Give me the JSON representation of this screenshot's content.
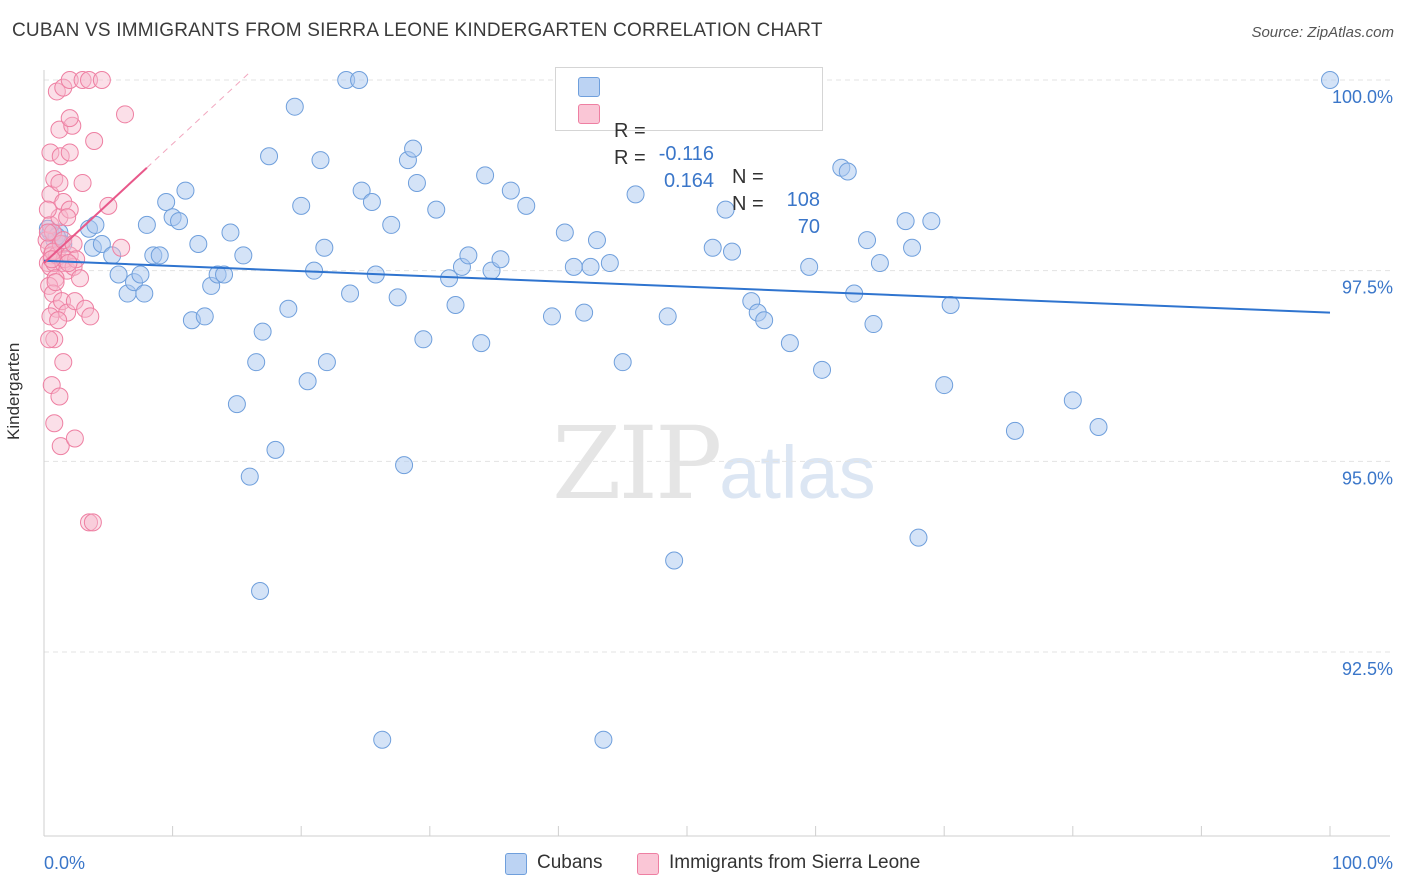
{
  "title": "CUBAN VS IMMIGRANTS FROM SIERRA LEONE KINDERGARTEN CORRELATION CHART",
  "source": "Source: ZipAtlas.com",
  "watermark": {
    "zip": "ZIP",
    "atlas": "atlas"
  },
  "colors": {
    "cubans": "#a9c7ef",
    "cubans_stroke": "#6f9fdc",
    "cubans_line": "#2f74cf",
    "sierra": "#f7b8cb",
    "sierra_stroke": "#ee7fa2",
    "sierra_line": "#e8588a",
    "value_blue": "#3a76c9"
  },
  "legend": {
    "rows": [
      {
        "r_label": "R =",
        "r_value": "-0.116",
        "n_label": "N =",
        "n_value": "108"
      },
      {
        "r_label": "R =",
        "r_value": "0.164",
        "n_label": "N =",
        "n_value": " 70"
      }
    ]
  },
  "bottom_legend": {
    "cubans": "Cubans",
    "sierra": "Immigrants from Sierra Leone"
  },
  "chart_data": {
    "type": "scatter",
    "title": "CUBAN VS IMMIGRANTS FROM SIERRA LEONE KINDERGARTEN CORRELATION CHART",
    "xlabel": "",
    "ylabel": "Kindergarten",
    "xlim": [
      0,
      100
    ],
    "ylim": [
      90.5,
      100.3
    ],
    "x_tick_labels": [
      "0.0%",
      "100.0%"
    ],
    "y_ticks": [
      92.5,
      95.0,
      97.5,
      100.0
    ],
    "y_tick_labels": [
      "92.5%",
      "95.0%",
      "97.5%",
      "100.0%"
    ],
    "grid": true,
    "legend_position": "top-center",
    "series": [
      {
        "name": "Cubans",
        "trend": {
          "x": [
            0,
            100
          ],
          "y": [
            97.63,
            96.95
          ]
        },
        "points": [
          [
            0.5,
            98.0
          ],
          [
            0.8,
            97.9
          ],
          [
            1.2,
            98.0
          ],
          [
            1.5,
            97.85
          ],
          [
            3.5,
            98.05
          ],
          [
            4.0,
            98.1
          ],
          [
            3.8,
            97.8
          ],
          [
            4.5,
            97.85
          ],
          [
            5.3,
            97.7
          ],
          [
            5.8,
            97.45
          ],
          [
            6.5,
            97.2
          ],
          [
            7.0,
            97.35
          ],
          [
            7.5,
            97.45
          ],
          [
            8.0,
            98.1
          ],
          [
            8.5,
            97.7
          ],
          [
            9.0,
            97.7
          ],
          [
            9.5,
            98.4
          ],
          [
            10.0,
            98.2
          ],
          [
            10.5,
            98.15
          ],
          [
            11.0,
            98.55
          ],
          [
            11.5,
            96.85
          ],
          [
            12.0,
            97.85
          ],
          [
            12.5,
            96.9
          ],
          [
            13.0,
            97.3
          ],
          [
            13.5,
            97.45
          ],
          [
            14.0,
            97.45
          ],
          [
            14.5,
            98.0
          ],
          [
            15.0,
            95.75
          ],
          [
            15.5,
            97.7
          ],
          [
            16.0,
            94.8
          ],
          [
            16.5,
            96.3
          ],
          [
            16.8,
            93.3
          ],
          [
            17.0,
            96.7
          ],
          [
            17.5,
            99.0
          ],
          [
            18.0,
            95.15
          ],
          [
            19.0,
            97.0
          ],
          [
            19.5,
            99.65
          ],
          [
            20.0,
            98.35
          ],
          [
            20.5,
            96.05
          ],
          [
            21.0,
            97.5
          ],
          [
            21.5,
            98.95
          ],
          [
            21.8,
            97.8
          ],
          [
            22.0,
            96.3
          ],
          [
            23.5,
            100.0
          ],
          [
            23.8,
            97.2
          ],
          [
            24.5,
            100.0
          ],
          [
            24.7,
            98.55
          ],
          [
            25.5,
            98.4
          ],
          [
            25.8,
            97.45
          ],
          [
            26.3,
            91.35
          ],
          [
            27.0,
            98.1
          ],
          [
            27.5,
            97.15
          ],
          [
            28.0,
            94.95
          ],
          [
            28.3,
            98.95
          ],
          [
            28.7,
            99.1
          ],
          [
            29.0,
            98.65
          ],
          [
            29.5,
            96.6
          ],
          [
            30.5,
            98.3
          ],
          [
            31.5,
            97.4
          ],
          [
            32.0,
            97.05
          ],
          [
            32.5,
            97.55
          ],
          [
            33.0,
            97.7
          ],
          [
            34.0,
            96.55
          ],
          [
            34.3,
            98.75
          ],
          [
            34.8,
            97.5
          ],
          [
            35.5,
            97.65
          ],
          [
            36.3,
            98.55
          ],
          [
            37.5,
            98.35
          ],
          [
            39.5,
            96.9
          ],
          [
            40.5,
            98.0
          ],
          [
            41.2,
            97.55
          ],
          [
            42.0,
            96.95
          ],
          [
            42.5,
            97.55
          ],
          [
            43.0,
            97.9
          ],
          [
            43.5,
            91.35
          ],
          [
            44.0,
            97.6
          ],
          [
            45.0,
            96.3
          ],
          [
            46.0,
            98.5
          ],
          [
            48.5,
            96.9
          ],
          [
            49.0,
            93.7
          ],
          [
            52.0,
            97.8
          ],
          [
            53.0,
            98.3
          ],
          [
            53.5,
            97.75
          ],
          [
            55.0,
            97.1
          ],
          [
            55.5,
            96.95
          ],
          [
            56.0,
            96.85
          ],
          [
            58.0,
            96.55
          ],
          [
            59.5,
            97.55
          ],
          [
            60.5,
            96.2
          ],
          [
            62.0,
            98.85
          ],
          [
            62.5,
            98.8
          ],
          [
            63.0,
            97.2
          ],
          [
            64.0,
            97.9
          ],
          [
            64.5,
            96.8
          ],
          [
            65.0,
            97.6
          ],
          [
            67.0,
            98.15
          ],
          [
            67.5,
            97.8
          ],
          [
            68.0,
            94.0
          ],
          [
            69.0,
            98.15
          ],
          [
            70.0,
            96.0
          ],
          [
            70.5,
            97.05
          ],
          [
            75.5,
            95.4
          ],
          [
            80.0,
            95.8
          ],
          [
            82.0,
            95.45
          ],
          [
            100.0,
            100.0
          ],
          [
            0.3,
            98.05
          ],
          [
            1.0,
            97.95
          ],
          [
            7.8,
            97.2
          ]
        ]
      },
      {
        "name": "Immigrants from Sierra Leone",
        "trend": {
          "x": [
            0,
            8
          ],
          "y": [
            97.6,
            98.85
          ]
        },
        "trend_dashed": {
          "x": [
            8,
            16
          ],
          "y": [
            98.85,
            100.1
          ]
        },
        "points": [
          [
            0.2,
            97.9
          ],
          [
            0.3,
            97.6
          ],
          [
            0.4,
            97.8
          ],
          [
            0.5,
            98.1
          ],
          [
            0.6,
            97.7
          ],
          [
            0.7,
            98.0
          ],
          [
            0.5,
            97.55
          ],
          [
            0.8,
            97.6
          ],
          [
            1.0,
            97.7
          ],
          [
            1.2,
            98.2
          ],
          [
            1.5,
            97.6
          ],
          [
            1.8,
            97.5
          ],
          [
            0.9,
            97.4
          ],
          [
            1.3,
            97.85
          ],
          [
            1.6,
            97.65
          ],
          [
            2.0,
            97.7
          ],
          [
            2.3,
            97.55
          ],
          [
            0.4,
            97.3
          ],
          [
            0.7,
            97.2
          ],
          [
            1.0,
            97.0
          ],
          [
            1.4,
            97.1
          ],
          [
            1.8,
            96.95
          ],
          [
            2.4,
            97.1
          ],
          [
            0.5,
            96.9
          ],
          [
            0.8,
            96.6
          ],
          [
            1.1,
            96.85
          ],
          [
            1.5,
            96.3
          ],
          [
            0.4,
            96.6
          ],
          [
            0.6,
            96.0
          ],
          [
            1.2,
            95.85
          ],
          [
            0.8,
            95.5
          ],
          [
            1.3,
            95.2
          ],
          [
            2.4,
            95.3
          ],
          [
            3.5,
            94.2
          ],
          [
            3.8,
            94.2
          ],
          [
            0.5,
            98.5
          ],
          [
            0.8,
            98.7
          ],
          [
            1.2,
            98.65
          ],
          [
            1.5,
            98.4
          ],
          [
            2.0,
            98.3
          ],
          [
            3.0,
            98.65
          ],
          [
            0.5,
            99.05
          ],
          [
            1.3,
            99.0
          ],
          [
            2.0,
            99.05
          ],
          [
            1.2,
            99.35
          ],
          [
            2.2,
            99.4
          ],
          [
            2.0,
            99.5
          ],
          [
            3.9,
            99.2
          ],
          [
            1.0,
            99.85
          ],
          [
            1.5,
            99.9
          ],
          [
            2.0,
            100.0
          ],
          [
            3.0,
            100.0
          ],
          [
            3.5,
            100.0
          ],
          [
            4.5,
            100.0
          ],
          [
            6.3,
            99.55
          ],
          [
            5.0,
            98.35
          ],
          [
            1.8,
            98.2
          ],
          [
            0.3,
            98.3
          ],
          [
            0.3,
            98.0
          ],
          [
            0.7,
            97.75
          ],
          [
            1.5,
            97.9
          ],
          [
            2.3,
            97.85
          ],
          [
            2.5,
            97.65
          ],
          [
            0.6,
            97.65
          ],
          [
            1.9,
            97.6
          ],
          [
            6.0,
            97.8
          ],
          [
            2.8,
            97.4
          ],
          [
            0.9,
            97.35
          ],
          [
            3.2,
            97.0
          ],
          [
            3.6,
            96.9
          ]
        ]
      }
    ]
  }
}
